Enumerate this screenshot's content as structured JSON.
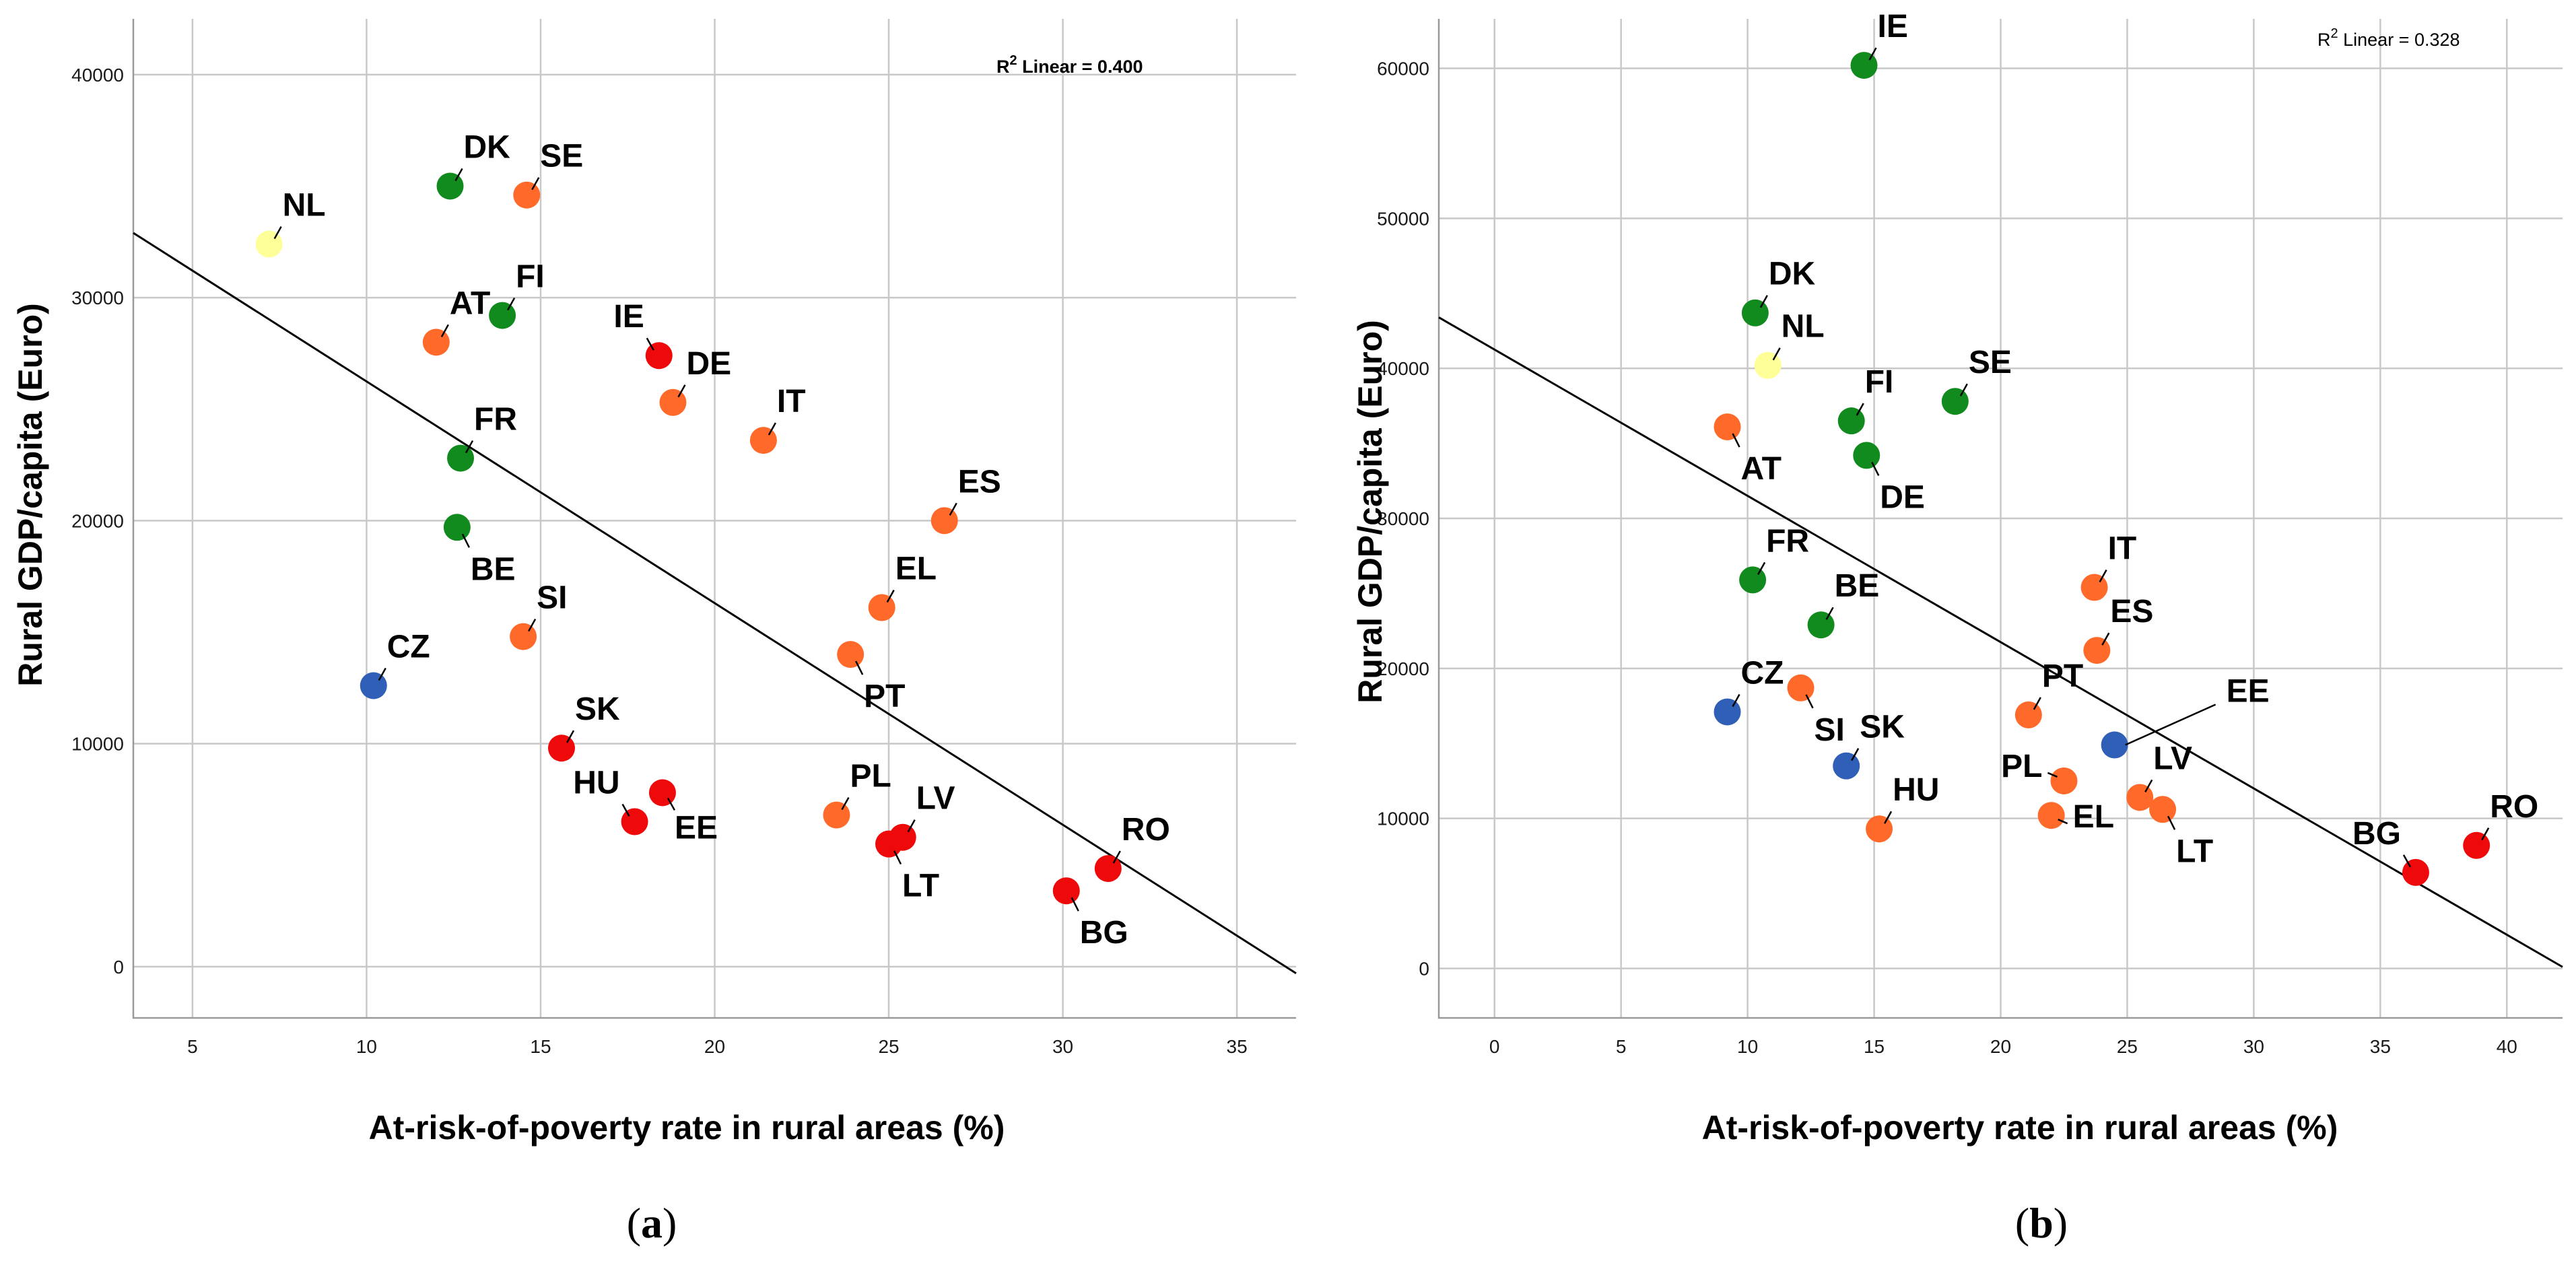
{
  "colors": {
    "green": "#118a1e",
    "orange": "#ff6a2b",
    "red": "#ee0a0a",
    "blue": "#2f5fb6",
    "yellow": "#ffff99"
  },
  "captions": {
    "a_letter": "a",
    "b_letter": "b"
  },
  "chart_data": [
    {
      "type": "scatter",
      "panel": "a",
      "xlabel": "At-risk-of-poverty rate in rural areas (%)",
      "ylabel": "Rural GDP/capita (Euro)",
      "xlim": [
        3.3,
        36.7
      ],
      "ylim": [
        -2300,
        42500
      ],
      "xticks": [
        5,
        10,
        15,
        20,
        25,
        30,
        35
      ],
      "yticks": [
        0,
        10000,
        20000,
        30000,
        40000
      ],
      "grid": true,
      "annotation": {
        "prefix": "R",
        "sup": "2",
        "text": " Linear = 0.400"
      },
      "trendline": {
        "x1": 3.3,
        "y1": 32900,
        "x2": 36.7,
        "y2": -300
      },
      "points": [
        {
          "label": "NL",
          "x": 7.2,
          "y": 32400,
          "color": "yellow",
          "pos": "ne"
        },
        {
          "label": "DK",
          "x": 12.4,
          "y": 35000,
          "color": "green",
          "pos": "ne"
        },
        {
          "label": "SE",
          "x": 14.6,
          "y": 34600,
          "color": "orange",
          "pos": "ne"
        },
        {
          "label": "FI",
          "x": 13.9,
          "y": 29200,
          "color": "green",
          "pos": "ne"
        },
        {
          "label": "AT",
          "x": 12.0,
          "y": 28000,
          "color": "orange",
          "pos": "ne"
        },
        {
          "label": "IE",
          "x": 18.4,
          "y": 27400,
          "color": "red",
          "pos": "nw"
        },
        {
          "label": "DE",
          "x": 18.8,
          "y": 25300,
          "color": "orange",
          "pos": "ne"
        },
        {
          "label": "IT",
          "x": 21.4,
          "y": 23600,
          "color": "orange",
          "pos": "ne"
        },
        {
          "label": "FR",
          "x": 12.7,
          "y": 22800,
          "color": "green",
          "pos": "ne"
        },
        {
          "label": "ES",
          "x": 26.6,
          "y": 20000,
          "color": "orange",
          "pos": "ne"
        },
        {
          "label": "BE",
          "x": 12.6,
          "y": 19700,
          "color": "green",
          "pos": "s"
        },
        {
          "label": "EL",
          "x": 24.8,
          "y": 16100,
          "color": "orange",
          "pos": "ne"
        },
        {
          "label": "SI",
          "x": 14.5,
          "y": 14800,
          "color": "orange",
          "pos": "ne"
        },
        {
          "label": "PT",
          "x": 23.9,
          "y": 14000,
          "color": "orange",
          "pos": "s"
        },
        {
          "label": "CZ",
          "x": 10.2,
          "y": 12600,
          "color": "blue",
          "pos": "ne"
        },
        {
          "label": "SK",
          "x": 15.6,
          "y": 9800,
          "color": "red",
          "pos": "ne"
        },
        {
          "label": "HU",
          "x": 17.7,
          "y": 6500,
          "color": "red",
          "pos": "nw"
        },
        {
          "label": "EE",
          "x": 18.5,
          "y": 7800,
          "color": "red",
          "pos": "se"
        },
        {
          "label": "PL",
          "x": 23.5,
          "y": 6800,
          "color": "orange",
          "pos": "ne"
        },
        {
          "label": "LV",
          "x": 25.4,
          "y": 5800,
          "color": "red",
          "pos": "ne"
        },
        {
          "label": "LT",
          "x": 25.0,
          "y": 5500,
          "color": "red",
          "pos": "s"
        },
        {
          "label": "RO",
          "x": 31.3,
          "y": 4400,
          "color": "red",
          "pos": "ne"
        },
        {
          "label": "BG",
          "x": 30.1,
          "y": 3400,
          "color": "red",
          "pos": "s"
        }
      ]
    },
    {
      "type": "scatter",
      "panel": "b",
      "xlabel": "At-risk-of-poverty rate in rural areas (%)",
      "ylabel": "Rural GDP/capita (Euro)",
      "xlim": [
        -2.2,
        42.2
      ],
      "ylim": [
        -3300,
        63300
      ],
      "xticks": [
        0,
        5,
        10,
        15,
        20,
        25,
        30,
        35,
        40
      ],
      "yticks": [
        0,
        10000,
        20000,
        30000,
        40000,
        50000,
        60000
      ],
      "grid": true,
      "annotation": {
        "prefix": "R",
        "sup": "2",
        "text": " Linear = 0.328"
      },
      "trendline": {
        "x1": -2.2,
        "y1": 43400,
        "x2": 42.2,
        "y2": 100
      },
      "points": [
        {
          "label": "IE",
          "x": 14.6,
          "y": 60200,
          "color": "green",
          "pos": "ne"
        },
        {
          "label": "DK",
          "x": 10.3,
          "y": 43700,
          "color": "green",
          "pos": "ne"
        },
        {
          "label": "NL",
          "x": 10.8,
          "y": 40200,
          "color": "yellow",
          "pos": "ne"
        },
        {
          "label": "SE",
          "x": 18.2,
          "y": 37800,
          "color": "green",
          "pos": "ne"
        },
        {
          "label": "FI",
          "x": 14.1,
          "y": 36500,
          "color": "green",
          "pos": "ne"
        },
        {
          "label": "AT",
          "x": 9.2,
          "y": 36100,
          "color": "orange",
          "pos": "s"
        },
        {
          "label": "DE",
          "x": 14.7,
          "y": 34200,
          "color": "green",
          "pos": "s"
        },
        {
          "label": "FR",
          "x": 10.2,
          "y": 25900,
          "color": "green",
          "pos": "ne"
        },
        {
          "label": "IT",
          "x": 23.7,
          "y": 25400,
          "color": "orange",
          "pos": "ne"
        },
        {
          "label": "BE",
          "x": 12.9,
          "y": 22900,
          "color": "green",
          "pos": "ne"
        },
        {
          "label": "ES",
          "x": 23.8,
          "y": 21200,
          "color": "orange",
          "pos": "ne"
        },
        {
          "label": "SI",
          "x": 12.1,
          "y": 18700,
          "color": "orange",
          "pos": "s"
        },
        {
          "label": "CZ",
          "x": 9.2,
          "y": 17100,
          "color": "blue",
          "pos": "ne"
        },
        {
          "label": "PT",
          "x": 21.1,
          "y": 16900,
          "color": "orange",
          "pos": "ne"
        },
        {
          "label": "EE",
          "x": 24.5,
          "y": 14900,
          "color": "blue",
          "pos": "leader"
        },
        {
          "label": "SK",
          "x": 13.9,
          "y": 13500,
          "color": "blue",
          "pos": "ne"
        },
        {
          "label": "PL",
          "x": 22.5,
          "y": 12500,
          "color": "orange",
          "pos": "w"
        },
        {
          "label": "LV",
          "x": 25.5,
          "y": 11400,
          "color": "orange",
          "pos": "ne"
        },
        {
          "label": "LT",
          "x": 26.4,
          "y": 10600,
          "color": "orange",
          "pos": "s"
        },
        {
          "label": "EL",
          "x": 22.0,
          "y": 10200,
          "color": "orange",
          "pos": "e"
        },
        {
          "label": "HU",
          "x": 15.2,
          "y": 9300,
          "color": "orange",
          "pos": "ne"
        },
        {
          "label": "RO",
          "x": 38.8,
          "y": 8200,
          "color": "red",
          "pos": "ne"
        },
        {
          "label": "BG",
          "x": 36.4,
          "y": 6400,
          "color": "red",
          "pos": "nw"
        }
      ]
    }
  ]
}
